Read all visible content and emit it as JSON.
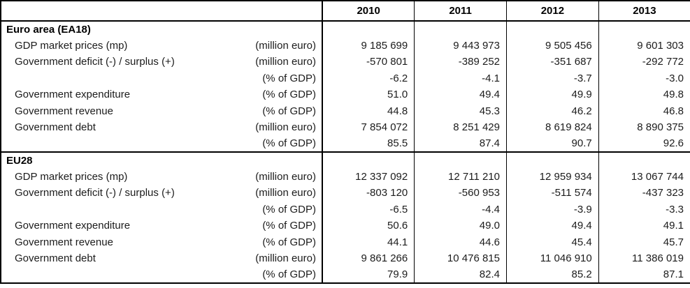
{
  "chart_data": {
    "type": "table",
    "columns": [
      "2010",
      "2011",
      "2012",
      "2013"
    ],
    "sections": [
      {
        "title": "Euro area (EA18)",
        "rows": [
          {
            "label": "GDP market prices (mp)",
            "unit": "(million euro)",
            "values": [
              "9 185 699",
              "9 443 973",
              "9 505 456",
              "9 601 303"
            ]
          },
          {
            "label": "Government deficit (-) / surplus (+)",
            "unit": "(million euro)",
            "values": [
              "-570 801",
              "-389 252",
              "-351 687",
              "-292 772"
            ]
          },
          {
            "label": "",
            "unit": "(% of GDP)",
            "values": [
              "-6.2",
              "-4.1",
              "-3.7",
              "-3.0"
            ]
          },
          {
            "label": "Government expenditure",
            "unit": "(% of GDP)",
            "values": [
              "51.0",
              "49.4",
              "49.9",
              "49.8"
            ]
          },
          {
            "label": "Government revenue",
            "unit": "(% of GDP)",
            "values": [
              "44.8",
              "45.3",
              "46.2",
              "46.8"
            ]
          },
          {
            "label": "Government debt",
            "unit": "(million euro)",
            "values": [
              "7 854 072",
              "8 251 429",
              "8 619 824",
              "8 890 375"
            ]
          },
          {
            "label": "",
            "unit": "(% of GDP)",
            "values": [
              "85.5",
              "87.4",
              "90.7",
              "92.6"
            ]
          }
        ]
      },
      {
        "title": "EU28",
        "rows": [
          {
            "label": "GDP market prices (mp)",
            "unit": "(million euro)",
            "values": [
              "12 337 092",
              "12 711 210",
              "12 959 934",
              "13 067 744"
            ]
          },
          {
            "label": "Government deficit (-) / surplus (+)",
            "unit": "(million euro)",
            "values": [
              "-803 120",
              "-560 953",
              "-511 574",
              "-437 323"
            ]
          },
          {
            "label": "",
            "unit": "(% of GDP)",
            "values": [
              "-6.5",
              "-4.4",
              "-3.9",
              "-3.3"
            ]
          },
          {
            "label": "Government expenditure",
            "unit": "(% of GDP)",
            "values": [
              "50.6",
              "49.0",
              "49.4",
              "49.1"
            ]
          },
          {
            "label": "Government revenue",
            "unit": "(% of GDP)",
            "values": [
              "44.1",
              "44.6",
              "45.4",
              "45.7"
            ]
          },
          {
            "label": "Government debt",
            "unit": "(million euro)",
            "values": [
              "9 861 266",
              "10 476 815",
              "11 046 910",
              "11 386 019"
            ]
          },
          {
            "label": "",
            "unit": "(% of GDP)",
            "values": [
              "79.9",
              "82.4",
              "85.2",
              "87.1"
            ]
          }
        ]
      }
    ]
  }
}
